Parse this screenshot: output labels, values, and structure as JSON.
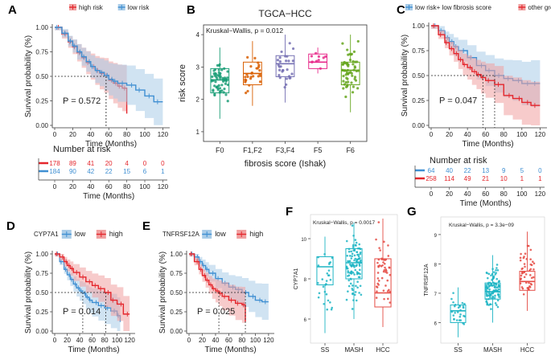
{
  "colors": {
    "red": "#e4262c",
    "blue": "#3f8fd2",
    "red_fill": "#f0a0a0",
    "blue_fill": "#a9cce8",
    "box_colors": [
      "#1b9e77",
      "#d95f02",
      "#7570b3",
      "#e7298a",
      "#66a61e"
    ],
    "teal": "#1fb5c4",
    "red_points": "#e54b44"
  },
  "chart_data": [
    {
      "panel": "A",
      "type": "line",
      "kind": "kaplan-meier",
      "legend": [
        "high risk",
        "low risk"
      ],
      "xlabel": "Time (Months)",
      "ylabel": "Survival probability (%)",
      "xticks": [
        "0",
        "20",
        "40",
        "60",
        "80",
        "100",
        "120"
      ],
      "yticks": [
        "0.00",
        "0.25",
        "0.50",
        "0.75",
        "1.00"
      ],
      "xlim": [
        0,
        125
      ],
      "ylim": [
        0,
        1
      ],
      "pvalue": "P = 0.572",
      "median_times": [
        57,
        57
      ],
      "series": [
        {
          "name": "high risk",
          "color": "red",
          "x": [
            0,
            8,
            15,
            20,
            25,
            30,
            35,
            40,
            45,
            50,
            55,
            60,
            65,
            70,
            75,
            80
          ],
          "y": [
            1.0,
            0.93,
            0.85,
            0.8,
            0.74,
            0.69,
            0.64,
            0.6,
            0.56,
            0.53,
            0.51,
            0.46,
            0.43,
            0.4,
            0.38,
            0.12
          ]
        },
        {
          "name": "low risk",
          "color": "blue",
          "x": [
            0,
            8,
            15,
            20,
            25,
            30,
            35,
            40,
            45,
            50,
            55,
            60,
            65,
            70,
            80,
            90,
            100,
            110,
            120
          ],
          "y": [
            1.0,
            0.94,
            0.86,
            0.81,
            0.75,
            0.7,
            0.65,
            0.6,
            0.56,
            0.54,
            0.51,
            0.47,
            0.45,
            0.43,
            0.41,
            0.36,
            0.3,
            0.24,
            0.24
          ]
        }
      ],
      "risk_table": {
        "title": "Number at risk",
        "rows": [
          {
            "color": "red",
            "values": [
              "178",
              "89",
              "41",
              "20",
              "4",
              "0",
              "0"
            ]
          },
          {
            "color": "blue",
            "values": [
              "184",
              "90",
              "42",
              "22",
              "15",
              "6",
              "1"
            ]
          }
        ],
        "xlabel": "Time (Months)"
      }
    },
    {
      "panel": "B",
      "type": "box",
      "title": "TGCA−HCC",
      "annotation": "Kruskal−Wallis, p = 0.012",
      "xlabel": "fibrosis score (Ishak)",
      "ylabel": "risk score",
      "categories": [
        "F0",
        "F1,F2",
        "F3,F4",
        "F5",
        "F6"
      ],
      "yticks": [
        "1",
        "2",
        "3",
        "4"
      ],
      "ylim": [
        0.7,
        4.3
      ],
      "boxes": [
        {
          "q1": 2.2,
          "median": 2.6,
          "q3": 2.95,
          "min": 1.4,
          "max": 3.6,
          "n": 60
        },
        {
          "q1": 2.45,
          "median": 2.8,
          "q3": 3.15,
          "min": 1.8,
          "max": 3.8,
          "n": 28
        },
        {
          "q1": 2.7,
          "median": 3.1,
          "q3": 3.35,
          "min": 1.9,
          "max": 4.0,
          "n": 28
        },
        {
          "q1": 2.95,
          "median": 3.15,
          "q3": 3.4,
          "min": 2.8,
          "max": 3.6,
          "n": 10
        },
        {
          "q1": 2.45,
          "median": 2.9,
          "q3": 3.15,
          "min": 1.6,
          "max": 4.0,
          "n": 60
        }
      ]
    },
    {
      "panel": "C",
      "type": "line",
      "kind": "kaplan-meier",
      "legend": [
        "low risk+ low fibrosis score",
        "other groups"
      ],
      "xlabel": "Time (Months)",
      "ylabel": "Survival probability (%)",
      "xticks": [
        "0",
        "20",
        "40",
        "60",
        "80",
        "100",
        "120"
      ],
      "yticks": [
        "0.00",
        "0.25",
        "0.50",
        "0.75",
        "1.00"
      ],
      "xlim": [
        0,
        125
      ],
      "ylim": [
        0,
        1
      ],
      "pvalue": "P = 0.047",
      "median_times": [
        70,
        57
      ],
      "series": [
        {
          "name": "low risk+ low fibrosis score",
          "color": "blue",
          "x": [
            0,
            8,
            15,
            20,
            25,
            30,
            40,
            50,
            60,
            70,
            80,
            90,
            100,
            110,
            120
          ],
          "y": [
            1.0,
            0.95,
            0.88,
            0.84,
            0.79,
            0.75,
            0.68,
            0.6,
            0.55,
            0.5,
            0.47,
            0.45,
            0.42,
            0.42,
            0.42
          ]
        },
        {
          "name": "other groups",
          "color": "red",
          "x": [
            0,
            8,
            15,
            20,
            25,
            30,
            35,
            40,
            45,
            50,
            55,
            60,
            70,
            80,
            90,
            100,
            110,
            120
          ],
          "y": [
            1.0,
            0.91,
            0.83,
            0.77,
            0.72,
            0.66,
            0.61,
            0.58,
            0.54,
            0.51,
            0.48,
            0.45,
            0.41,
            0.3,
            0.27,
            0.23,
            0.2,
            0.2
          ]
        }
      ],
      "risk_table": {
        "title": "Number at risk",
        "rows": [
          {
            "color": "blue",
            "values": [
              "64",
              "40",
              "22",
              "13",
              "9",
              "5",
              "0"
            ]
          },
          {
            "color": "red",
            "values": [
              "258",
              "114",
              "49",
              "21",
              "10",
              "1",
              "1"
            ]
          }
        ],
        "xlabel": "Time (Months)"
      }
    },
    {
      "panel": "D",
      "type": "line",
      "kind": "kaplan-meier",
      "legend_title": "CYP7A1",
      "legend": [
        "low",
        "high"
      ],
      "xlabel": "Time (Months)",
      "ylabel": "Survival probability (%)",
      "xticks": [
        "0",
        "20",
        "40",
        "60",
        "80",
        "100",
        "120"
      ],
      "yticks": [
        "0.00",
        "0.25",
        "0.50",
        "0.75",
        "1.00"
      ],
      "xlim": [
        0,
        125
      ],
      "ylim": [
        0,
        1
      ],
      "pvalue": "P = 0.014",
      "median_times": [
        45,
        82
      ],
      "series": [
        {
          "name": "low",
          "color": "blue",
          "x": [
            0,
            8,
            15,
            20,
            25,
            30,
            35,
            40,
            45,
            50,
            55,
            60,
            70,
            80,
            90,
            100,
            105
          ],
          "y": [
            1.0,
            0.9,
            0.8,
            0.73,
            0.67,
            0.61,
            0.56,
            0.52,
            0.49,
            0.44,
            0.4,
            0.37,
            0.33,
            0.3,
            0.26,
            0.2,
            0.12
          ]
        },
        {
          "name": "high",
          "color": "red",
          "x": [
            0,
            8,
            15,
            20,
            25,
            30,
            40,
            50,
            60,
            70,
            80,
            90,
            100,
            110,
            120
          ],
          "y": [
            1.0,
            0.96,
            0.9,
            0.85,
            0.81,
            0.76,
            0.7,
            0.64,
            0.59,
            0.55,
            0.5,
            0.4,
            0.35,
            0.22,
            0.22
          ]
        }
      ]
    },
    {
      "panel": "E",
      "type": "line",
      "kind": "kaplan-meier",
      "legend_title": "TNFRSF12A",
      "legend": [
        "low",
        "high"
      ],
      "xlabel": "Time (Months)",
      "ylabel": "Survival probability (%)",
      "xticks": [
        "0",
        "20",
        "40",
        "60",
        "80",
        "100",
        "120"
      ],
      "yticks": [
        "0.00",
        "0.25",
        "0.50",
        "0.75",
        "1.00"
      ],
      "xlim": [
        0,
        125
      ],
      "ylim": [
        0,
        1
      ],
      "pvalue": "P = 0.025",
      "median_times": [
        45,
        85
      ],
      "series": [
        {
          "name": "low",
          "color": "blue",
          "x": [
            0,
            8,
            15,
            20,
            25,
            30,
            40,
            50,
            60,
            70,
            80,
            90,
            100,
            110,
            120
          ],
          "y": [
            1.0,
            0.96,
            0.9,
            0.85,
            0.8,
            0.75,
            0.68,
            0.62,
            0.57,
            0.54,
            0.5,
            0.45,
            0.4,
            0.38,
            0.38
          ]
        },
        {
          "name": "high",
          "color": "red",
          "x": [
            0,
            8,
            15,
            20,
            25,
            30,
            35,
            40,
            45,
            50,
            60,
            70,
            80,
            85
          ],
          "y": [
            1.0,
            0.9,
            0.8,
            0.72,
            0.66,
            0.6,
            0.55,
            0.52,
            0.49,
            0.45,
            0.4,
            0.36,
            0.34,
            0.12
          ]
        }
      ]
    },
    {
      "panel": "F",
      "type": "box",
      "annotation": "Kruskal−Wallis, p = 0.0017",
      "ylabel": "CYP7A1",
      "categories": [
        "SS",
        "MASH",
        "HCC"
      ],
      "yticks": [
        "6",
        "8",
        "10"
      ],
      "ylim": [
        4.8,
        11.2
      ],
      "boxes": [
        {
          "q1": 7.7,
          "median": 8.6,
          "q3": 9.1,
          "min": 5.3,
          "max": 10.1,
          "n": 28,
          "color": "teal"
        },
        {
          "q1": 8.0,
          "median": 8.8,
          "q3": 9.5,
          "min": 6.0,
          "max": 10.8,
          "n": 110,
          "color": "teal"
        },
        {
          "q1": 6.6,
          "median": 7.3,
          "q3": 9.0,
          "min": 5.6,
          "max": 11.0,
          "n": 50,
          "color": "red_points"
        }
      ]
    },
    {
      "panel": "G",
      "type": "box",
      "annotation": "Kruskal−Wallis, p = 3.3e−09",
      "ylabel": "TNFRSF12A",
      "categories": [
        "SS",
        "MASH",
        "HCC"
      ],
      "yticks": [
        "6",
        "7",
        "8",
        "9"
      ],
      "ylim": [
        5.3,
        9.6
      ],
      "boxes": [
        {
          "q1": 6.0,
          "median": 6.4,
          "q3": 6.6,
          "min": 5.5,
          "max": 7.2,
          "n": 28,
          "color": "teal"
        },
        {
          "q1": 6.8,
          "median": 7.05,
          "q3": 7.35,
          "min": 6.0,
          "max": 8.3,
          "n": 110,
          "color": "teal"
        },
        {
          "q1": 7.1,
          "median": 7.4,
          "q3": 7.75,
          "min": 6.4,
          "max": 9.1,
          "n": 50,
          "color": "red_points"
        }
      ]
    }
  ]
}
